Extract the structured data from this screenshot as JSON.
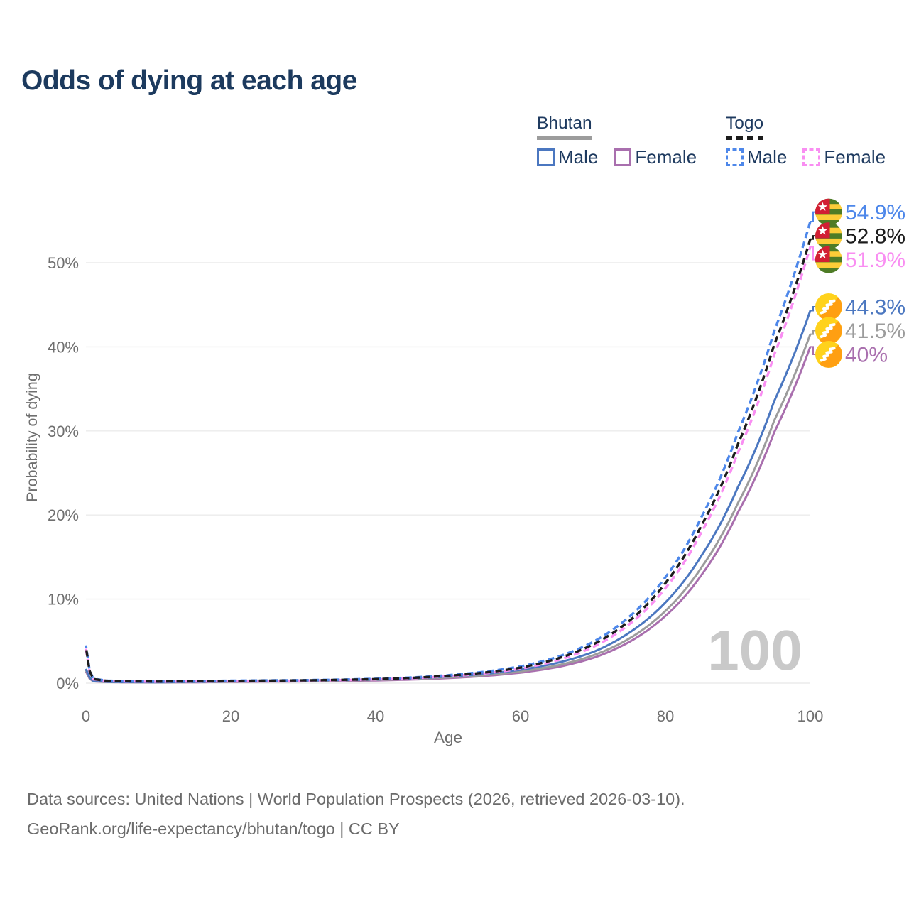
{
  "page": {
    "title": "Odds of dying at each age",
    "watermark_age": "100"
  },
  "legend": {
    "groups": [
      {
        "id": "bhutan",
        "label": "Bhutan",
        "line_style": "solid",
        "line_color": "#9c9c9c",
        "items": [
          {
            "id": "male",
            "label": "Male",
            "color": "#4b77c0",
            "line_style": "solid"
          },
          {
            "id": "female",
            "label": "Female",
            "color": "#a96fae",
            "line_style": "solid"
          }
        ]
      },
      {
        "id": "togo",
        "label": "Togo",
        "line_style": "dashed",
        "line_color": "#1c1c1c",
        "items": [
          {
            "id": "male",
            "label": "Male",
            "color": "#4d87ea",
            "line_style": "dashed"
          },
          {
            "id": "female",
            "label": "Female",
            "color": "#f98ef2",
            "line_style": "dashed"
          }
        ]
      }
    ]
  },
  "footer": {
    "line1": "Data sources: United Nations | World Population Prospects (2026, retrieved 2026-03-10).",
    "line2": "GeoRank.org/life-expectancy/bhutan/togo | CC BY"
  },
  "flags": {
    "togo": {
      "green": "#4e7c26",
      "yellow": "#fccd38",
      "red": "#d21e34",
      "star": "#ffffff"
    },
    "bhutan": {
      "yellow": "#ffd21c",
      "orange": "#ff9f12",
      "dragon": "#ffffff"
    }
  },
  "chart_data": {
    "type": "line",
    "title": "Odds of dying at each age",
    "xlabel": "Age",
    "ylabel": "Probability of dying",
    "unit": "percent",
    "xlim": [
      0,
      100
    ],
    "ylim": [
      0,
      57
    ],
    "x_ticks": [
      0,
      20,
      40,
      60,
      80,
      100
    ],
    "y_ticks": [
      0,
      10,
      20,
      30,
      40,
      50
    ],
    "grid": "horizontal",
    "legend_position": "top-right",
    "annotation_age_counter": "100",
    "series": [
      {
        "name": "Togo Male",
        "country": "Togo",
        "sex": "male",
        "flag": "togo",
        "color": "#4d87ea",
        "dashed": true,
        "end_label": "54.9%",
        "end_value": 54.9,
        "points": [
          [
            0,
            4.5
          ],
          [
            1,
            0.55
          ],
          [
            3,
            0.3
          ],
          [
            5,
            0.25
          ],
          [
            10,
            0.2
          ],
          [
            15,
            0.24
          ],
          [
            20,
            0.3
          ],
          [
            25,
            0.33
          ],
          [
            30,
            0.36
          ],
          [
            35,
            0.42
          ],
          [
            40,
            0.52
          ],
          [
            45,
            0.68
          ],
          [
            50,
            0.95
          ],
          [
            55,
            1.35
          ],
          [
            60,
            2.0
          ],
          [
            65,
            3.1
          ],
          [
            70,
            4.9
          ],
          [
            75,
            7.9
          ],
          [
            80,
            12.6
          ],
          [
            85,
            19.8
          ],
          [
            90,
            29.8
          ],
          [
            95,
            41.8
          ],
          [
            100,
            54.9
          ]
        ]
      },
      {
        "name": "Togo",
        "country": "Togo",
        "sex": "both",
        "flag": "togo",
        "color": "#1c1c1c",
        "dashed": true,
        "end_label": "52.8%",
        "end_value": 52.8,
        "points": [
          [
            0,
            4.3
          ],
          [
            1,
            0.5
          ],
          [
            3,
            0.28
          ],
          [
            5,
            0.23
          ],
          [
            10,
            0.19
          ],
          [
            15,
            0.22
          ],
          [
            20,
            0.27
          ],
          [
            25,
            0.3
          ],
          [
            30,
            0.33
          ],
          [
            35,
            0.39
          ],
          [
            40,
            0.48
          ],
          [
            45,
            0.63
          ],
          [
            50,
            0.88
          ],
          [
            55,
            1.25
          ],
          [
            60,
            1.85
          ],
          [
            65,
            2.9
          ],
          [
            70,
            4.6
          ],
          [
            75,
            7.4
          ],
          [
            80,
            11.9
          ],
          [
            85,
            18.8
          ],
          [
            90,
            28.4
          ],
          [
            95,
            40.2
          ],
          [
            100,
            52.8
          ]
        ]
      },
      {
        "name": "Togo Female",
        "country": "Togo",
        "sex": "female",
        "flag": "togo",
        "color": "#f98ef2",
        "dashed": true,
        "end_label": "51.9%",
        "end_value": 51.9,
        "points": [
          [
            0,
            4.1
          ],
          [
            1,
            0.46
          ],
          [
            3,
            0.26
          ],
          [
            5,
            0.21
          ],
          [
            10,
            0.17
          ],
          [
            15,
            0.2
          ],
          [
            20,
            0.24
          ],
          [
            25,
            0.27
          ],
          [
            30,
            0.3
          ],
          [
            35,
            0.36
          ],
          [
            40,
            0.44
          ],
          [
            45,
            0.58
          ],
          [
            50,
            0.82
          ],
          [
            55,
            1.15
          ],
          [
            60,
            1.72
          ],
          [
            65,
            2.7
          ],
          [
            70,
            4.3
          ],
          [
            75,
            7.0
          ],
          [
            80,
            11.3
          ],
          [
            85,
            18.0
          ],
          [
            90,
            27.4
          ],
          [
            95,
            39.0
          ],
          [
            100,
            51.9
          ]
        ]
      },
      {
        "name": "Bhutan Male",
        "country": "Bhutan",
        "sex": "male",
        "flag": "bhutan",
        "color": "#4b77c0",
        "dashed": false,
        "end_label": "44.3%",
        "end_value": 44.3,
        "points": [
          [
            0,
            1.7
          ],
          [
            1,
            0.28
          ],
          [
            3,
            0.16
          ],
          [
            5,
            0.13
          ],
          [
            10,
            0.11
          ],
          [
            15,
            0.15
          ],
          [
            20,
            0.22
          ],
          [
            25,
            0.27
          ],
          [
            30,
            0.31
          ],
          [
            35,
            0.36
          ],
          [
            40,
            0.44
          ],
          [
            45,
            0.57
          ],
          [
            50,
            0.78
          ],
          [
            55,
            1.1
          ],
          [
            60,
            1.6
          ],
          [
            65,
            2.4
          ],
          [
            70,
            3.7
          ],
          [
            75,
            6.0
          ],
          [
            80,
            9.6
          ],
          [
            85,
            15.2
          ],
          [
            90,
            23.3
          ],
          [
            95,
            33.5
          ],
          [
            100,
            44.3
          ]
        ]
      },
      {
        "name": "Bhutan",
        "country": "Bhutan",
        "sex": "both",
        "flag": "bhutan",
        "color": "#9c9c9c",
        "dashed": false,
        "end_label": "41.5%",
        "end_value": 41.5,
        "points": [
          [
            0,
            1.55
          ],
          [
            1,
            0.25
          ],
          [
            3,
            0.14
          ],
          [
            5,
            0.12
          ],
          [
            10,
            0.1
          ],
          [
            15,
            0.13
          ],
          [
            20,
            0.18
          ],
          [
            25,
            0.22
          ],
          [
            30,
            0.26
          ],
          [
            35,
            0.31
          ],
          [
            40,
            0.38
          ],
          [
            45,
            0.5
          ],
          [
            50,
            0.68
          ],
          [
            55,
            0.95
          ],
          [
            60,
            1.4
          ],
          [
            65,
            2.1
          ],
          [
            70,
            3.3
          ],
          [
            75,
            5.3
          ],
          [
            80,
            8.6
          ],
          [
            85,
            13.8
          ],
          [
            90,
            21.4
          ],
          [
            95,
            31.2
          ],
          [
            100,
            41.5
          ]
        ]
      },
      {
        "name": "Bhutan Female",
        "country": "Bhutan",
        "sex": "female",
        "flag": "bhutan",
        "color": "#a96fae",
        "dashed": false,
        "end_label": "40%",
        "end_value": 40.0,
        "points": [
          [
            0,
            1.4
          ],
          [
            1,
            0.22
          ],
          [
            3,
            0.13
          ],
          [
            5,
            0.11
          ],
          [
            10,
            0.09
          ],
          [
            15,
            0.11
          ],
          [
            20,
            0.15
          ],
          [
            25,
            0.18
          ],
          [
            30,
            0.21
          ],
          [
            35,
            0.26
          ],
          [
            40,
            0.32
          ],
          [
            45,
            0.43
          ],
          [
            50,
            0.6
          ],
          [
            55,
            0.85
          ],
          [
            60,
            1.25
          ],
          [
            65,
            1.9
          ],
          [
            70,
            3.0
          ],
          [
            75,
            4.9
          ],
          [
            80,
            8.0
          ],
          [
            85,
            12.9
          ],
          [
            90,
            20.3
          ],
          [
            95,
            29.8
          ],
          [
            100,
            40.0
          ]
        ]
      }
    ]
  }
}
